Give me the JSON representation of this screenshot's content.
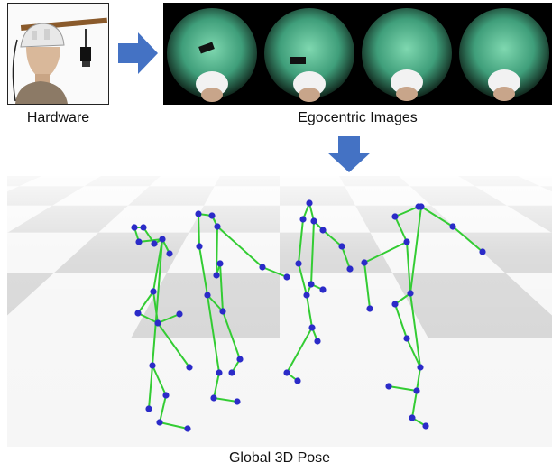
{
  "captions": {
    "hardware": "Hardware",
    "egocentric": "Egocentric Images",
    "pose": "Global 3D Pose"
  },
  "colors": {
    "arrow": "#4472C4",
    "bone": "#33cc33",
    "joint": "#2b2bc8",
    "floor_dark": "#d3d3d3",
    "floor_light": "#f6f6f6",
    "fisheye_green": "#3f9e7a"
  },
  "icons": {
    "arrow_right": "right-arrow-icon",
    "arrow_down": "down-arrow-icon"
  },
  "egocentric_frame_count": 4,
  "skeleton_count": 4
}
